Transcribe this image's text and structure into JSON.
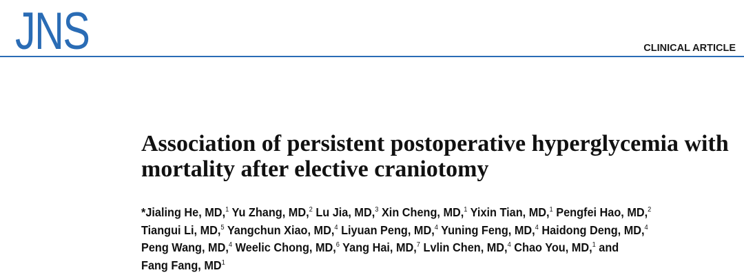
{
  "journal": {
    "logo_text": "JNS",
    "section_label": "CLINICAL ARTICLE",
    "accent_color": "#2a6cb5"
  },
  "article": {
    "title_line1": "Association of persistent postoperative hyperglycemia with",
    "title_line2": "mortality after elective craniotomy",
    "authors": [
      [
        {
          "name": "*Jialing He, MD,",
          "aff": "1"
        },
        {
          "name": "Yu Zhang, MD,",
          "aff": "2"
        },
        {
          "name": "Lu Jia, MD,",
          "aff": "3"
        },
        {
          "name": "Xin Cheng, MD,",
          "aff": "1"
        },
        {
          "name": "Yixin Tian, MD,",
          "aff": "1"
        },
        {
          "name": "Pengfei Hao, MD,",
          "aff": "2"
        }
      ],
      [
        {
          "name": "Tiangui Li, MD,",
          "aff": "5"
        },
        {
          "name": "Yangchun Xiao, MD,",
          "aff": "4"
        },
        {
          "name": "Liyuan Peng, MD,",
          "aff": "4"
        },
        {
          "name": "Yuning Feng, MD,",
          "aff": "4"
        },
        {
          "name": "Haidong Deng, MD,",
          "aff": "4"
        }
      ],
      [
        {
          "name": "Peng Wang, MD,",
          "aff": "4"
        },
        {
          "name": "Weelic Chong, MD,",
          "aff": "6"
        },
        {
          "name": "Yang Hai, MD,",
          "aff": "7"
        },
        {
          "name": "Lvlin Chen, MD,",
          "aff": "4"
        },
        {
          "name": "Chao You, MD,",
          "aff": "1",
          "after": " and"
        }
      ],
      [
        {
          "name": "Fang Fang, MD",
          "aff": "1"
        }
      ]
    ]
  }
}
